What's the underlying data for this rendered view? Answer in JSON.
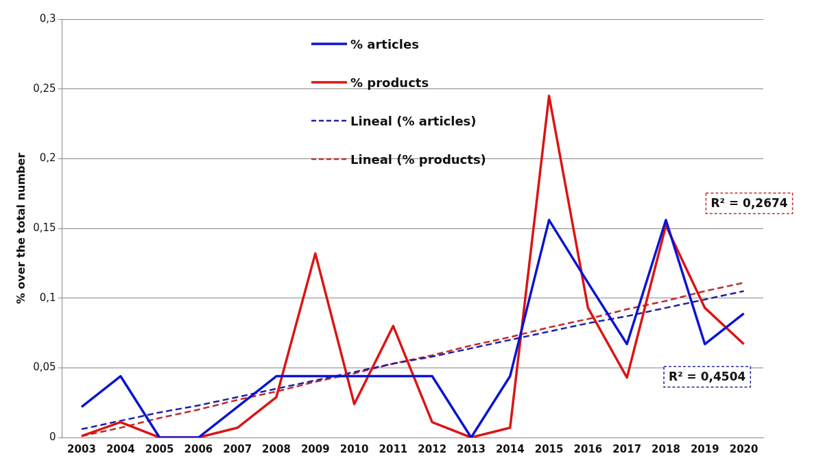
{
  "chart_data": {
    "type": "line",
    "ylabel": "% over the total number",
    "categories": [
      "2003",
      "2004",
      "2005",
      "2006",
      "2007",
      "2008",
      "2009",
      "2010",
      "2011",
      "2012",
      "2013",
      "2014",
      "2015",
      "2016",
      "2017",
      "2018",
      "2019",
      "2020"
    ],
    "series": [
      {
        "name": "% articles",
        "color": "#0a14d2",
        "values": [
          0.022,
          0.044,
          0,
          0,
          0.022,
          0.044,
          0.044,
          0.044,
          0.044,
          0.044,
          0,
          0.044,
          0.156,
          0.111,
          0.067,
          0.156,
          0.067,
          0.089
        ]
      },
      {
        "name": "% products",
        "color": "#dc1414",
        "values": [
          0.001,
          0.011,
          0,
          0,
          0.007,
          0.029,
          0.132,
          0.024,
          0.08,
          0.011,
          0,
          0.007,
          0.245,
          0.093,
          0.043,
          0.152,
          0.093,
          0.067
        ]
      },
      {
        "name": "Lineal (% articles)",
        "type": "line",
        "line_style": "dashed",
        "color": "#1f1fa8",
        "values": [
          0.006,
          0.012,
          0.018,
          0.023,
          0.029,
          0.035,
          0.041,
          0.047,
          0.053,
          0.058,
          0.064,
          0.07,
          0.076,
          0.082,
          0.087,
          0.093,
          0.099,
          0.105
        ]
      },
      {
        "name": "Lineal (% products)",
        "type": "line",
        "line_style": "dashed",
        "color": "#c42828",
        "values": [
          0.001,
          0.007,
          0.014,
          0.02,
          0.027,
          0.033,
          0.04,
          0.046,
          0.053,
          0.059,
          0.066,
          0.072,
          0.079,
          0.085,
          0.092,
          0.098,
          0.105,
          0.111
        ]
      }
    ],
    "ylim": [
      0,
      0.3
    ],
    "yticks": [
      {
        "value": 0,
        "label": "0"
      },
      {
        "value": 0.05,
        "label": "0,05"
      },
      {
        "value": 0.1,
        "label": "0,1"
      },
      {
        "value": 0.15,
        "label": "0,15"
      },
      {
        "value": 0.2,
        "label": "0,2"
      },
      {
        "value": 0.25,
        "label": "0,25"
      },
      {
        "value": 0.3,
        "label": "0,3"
      }
    ],
    "grid": "y",
    "legend": "top",
    "marker": "none",
    "line_style": "solid",
    "annotations": [
      "R² = 0,2674",
      "R² = 0,4504"
    ]
  }
}
